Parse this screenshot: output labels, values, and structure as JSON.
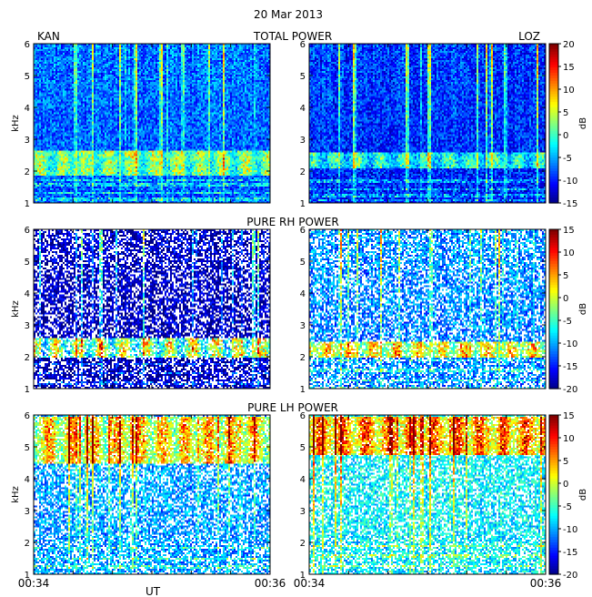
{
  "figure": {
    "date": "20 Mar 2013",
    "station_left": "KAN",
    "station_right": "LOZ",
    "x_ticks": [
      "00:34",
      "00:36"
    ],
    "x_label": "UT",
    "y_label": "kHz",
    "colorbar_label": "dB"
  },
  "chart_data": [
    {
      "type": "heatmap",
      "title": "TOTAL POWER",
      "station": "KAN",
      "xlabel": "",
      "ylabel": "kHz",
      "x_range": [
        "00:34",
        "00:36"
      ],
      "y_range_khz": [
        1,
        6
      ],
      "y_ticks": [
        1,
        2,
        3,
        4,
        5,
        6
      ],
      "colorbar": null,
      "features": {
        "band_khz": [
          1.9,
          2.7
        ],
        "band_peak_db": 6,
        "background_db": -8,
        "low_lines_khz": [
          1.15,
          1.35,
          1.6,
          1.75
        ]
      }
    },
    {
      "type": "heatmap",
      "title": "TOTAL POWER",
      "station": "LOZ",
      "xlabel": "",
      "ylabel": "",
      "x_range": [
        "00:34",
        "00:36"
      ],
      "y_range_khz": [
        1,
        6
      ],
      "y_ticks": [
        1,
        2,
        3,
        4,
        5,
        6
      ],
      "colorbar": {
        "label": "dB",
        "range": [
          -15,
          20
        ],
        "ticks": [
          20,
          15,
          10,
          5,
          0,
          -5,
          -10,
          -15
        ]
      },
      "features": {
        "band_khz": [
          2.1,
          2.6
        ],
        "band_peak_db": 2,
        "background_db": -10,
        "low_lines_khz": [
          1.1,
          1.25,
          1.45,
          1.7
        ]
      }
    },
    {
      "type": "heatmap",
      "title": "PURE RH POWER",
      "station": "KAN",
      "xlabel": "",
      "ylabel": "kHz",
      "x_range": [
        "00:34",
        "00:36"
      ],
      "y_range_khz": [
        1,
        6
      ],
      "y_ticks": [
        1,
        2,
        3,
        4,
        5,
        6
      ],
      "colorbar": null,
      "features": {
        "band_khz": [
          2.0,
          2.6
        ],
        "band_peak_db": 10,
        "background_db": -14,
        "low_lines_khz": [
          1.2,
          1.5,
          1.8
        ]
      }
    },
    {
      "type": "heatmap",
      "title": "PURE RH POWER",
      "station": "LOZ",
      "xlabel": "",
      "ylabel": "",
      "x_range": [
        "00:34",
        "00:36"
      ],
      "y_range_khz": [
        1,
        6
      ],
      "y_ticks": [
        1,
        2,
        3,
        4,
        5,
        6
      ],
      "colorbar": {
        "label": "dB",
        "range": [
          -20,
          15
        ],
        "ticks": [
          15,
          10,
          5,
          0,
          -5,
          -10,
          -15,
          -20
        ]
      },
      "features": {
        "band_khz": [
          2.0,
          2.5
        ],
        "band_peak_db": 6,
        "background_db": -12,
        "low_lines_khz": [
          1.05,
          1.3,
          1.6,
          1.9
        ]
      }
    },
    {
      "type": "heatmap",
      "title": "PURE LH POWER",
      "station": "KAN",
      "xlabel": "UT",
      "ylabel": "kHz",
      "x_range": [
        "00:34",
        "00:36"
      ],
      "y_range_khz": [
        1,
        6
      ],
      "y_ticks": [
        1,
        2,
        3,
        4,
        5,
        6
      ],
      "colorbar": null,
      "features": {
        "band_khz": [
          4.5,
          6.0
        ],
        "band_peak_db": 12,
        "background_db": -6,
        "low_lines_khz": [
          1.25,
          1.5,
          1.85
        ]
      }
    },
    {
      "type": "heatmap",
      "title": "PURE LH POWER",
      "station": "LOZ",
      "xlabel": "",
      "ylabel": "",
      "x_range": [
        "00:34",
        "00:36"
      ],
      "y_range_khz": [
        1,
        6
      ],
      "y_ticks": [
        1,
        2,
        3,
        4,
        5,
        6
      ],
      "colorbar": {
        "label": "dB",
        "range": [
          -20,
          15
        ],
        "ticks": [
          15,
          10,
          5,
          0,
          -5,
          -10,
          -15,
          -20
        ]
      },
      "features": {
        "band_khz": [
          4.8,
          6.0
        ],
        "band_peak_db": 10,
        "background_db": -8,
        "low_lines_khz": [
          1.3,
          1.6,
          1.9
        ]
      }
    }
  ]
}
